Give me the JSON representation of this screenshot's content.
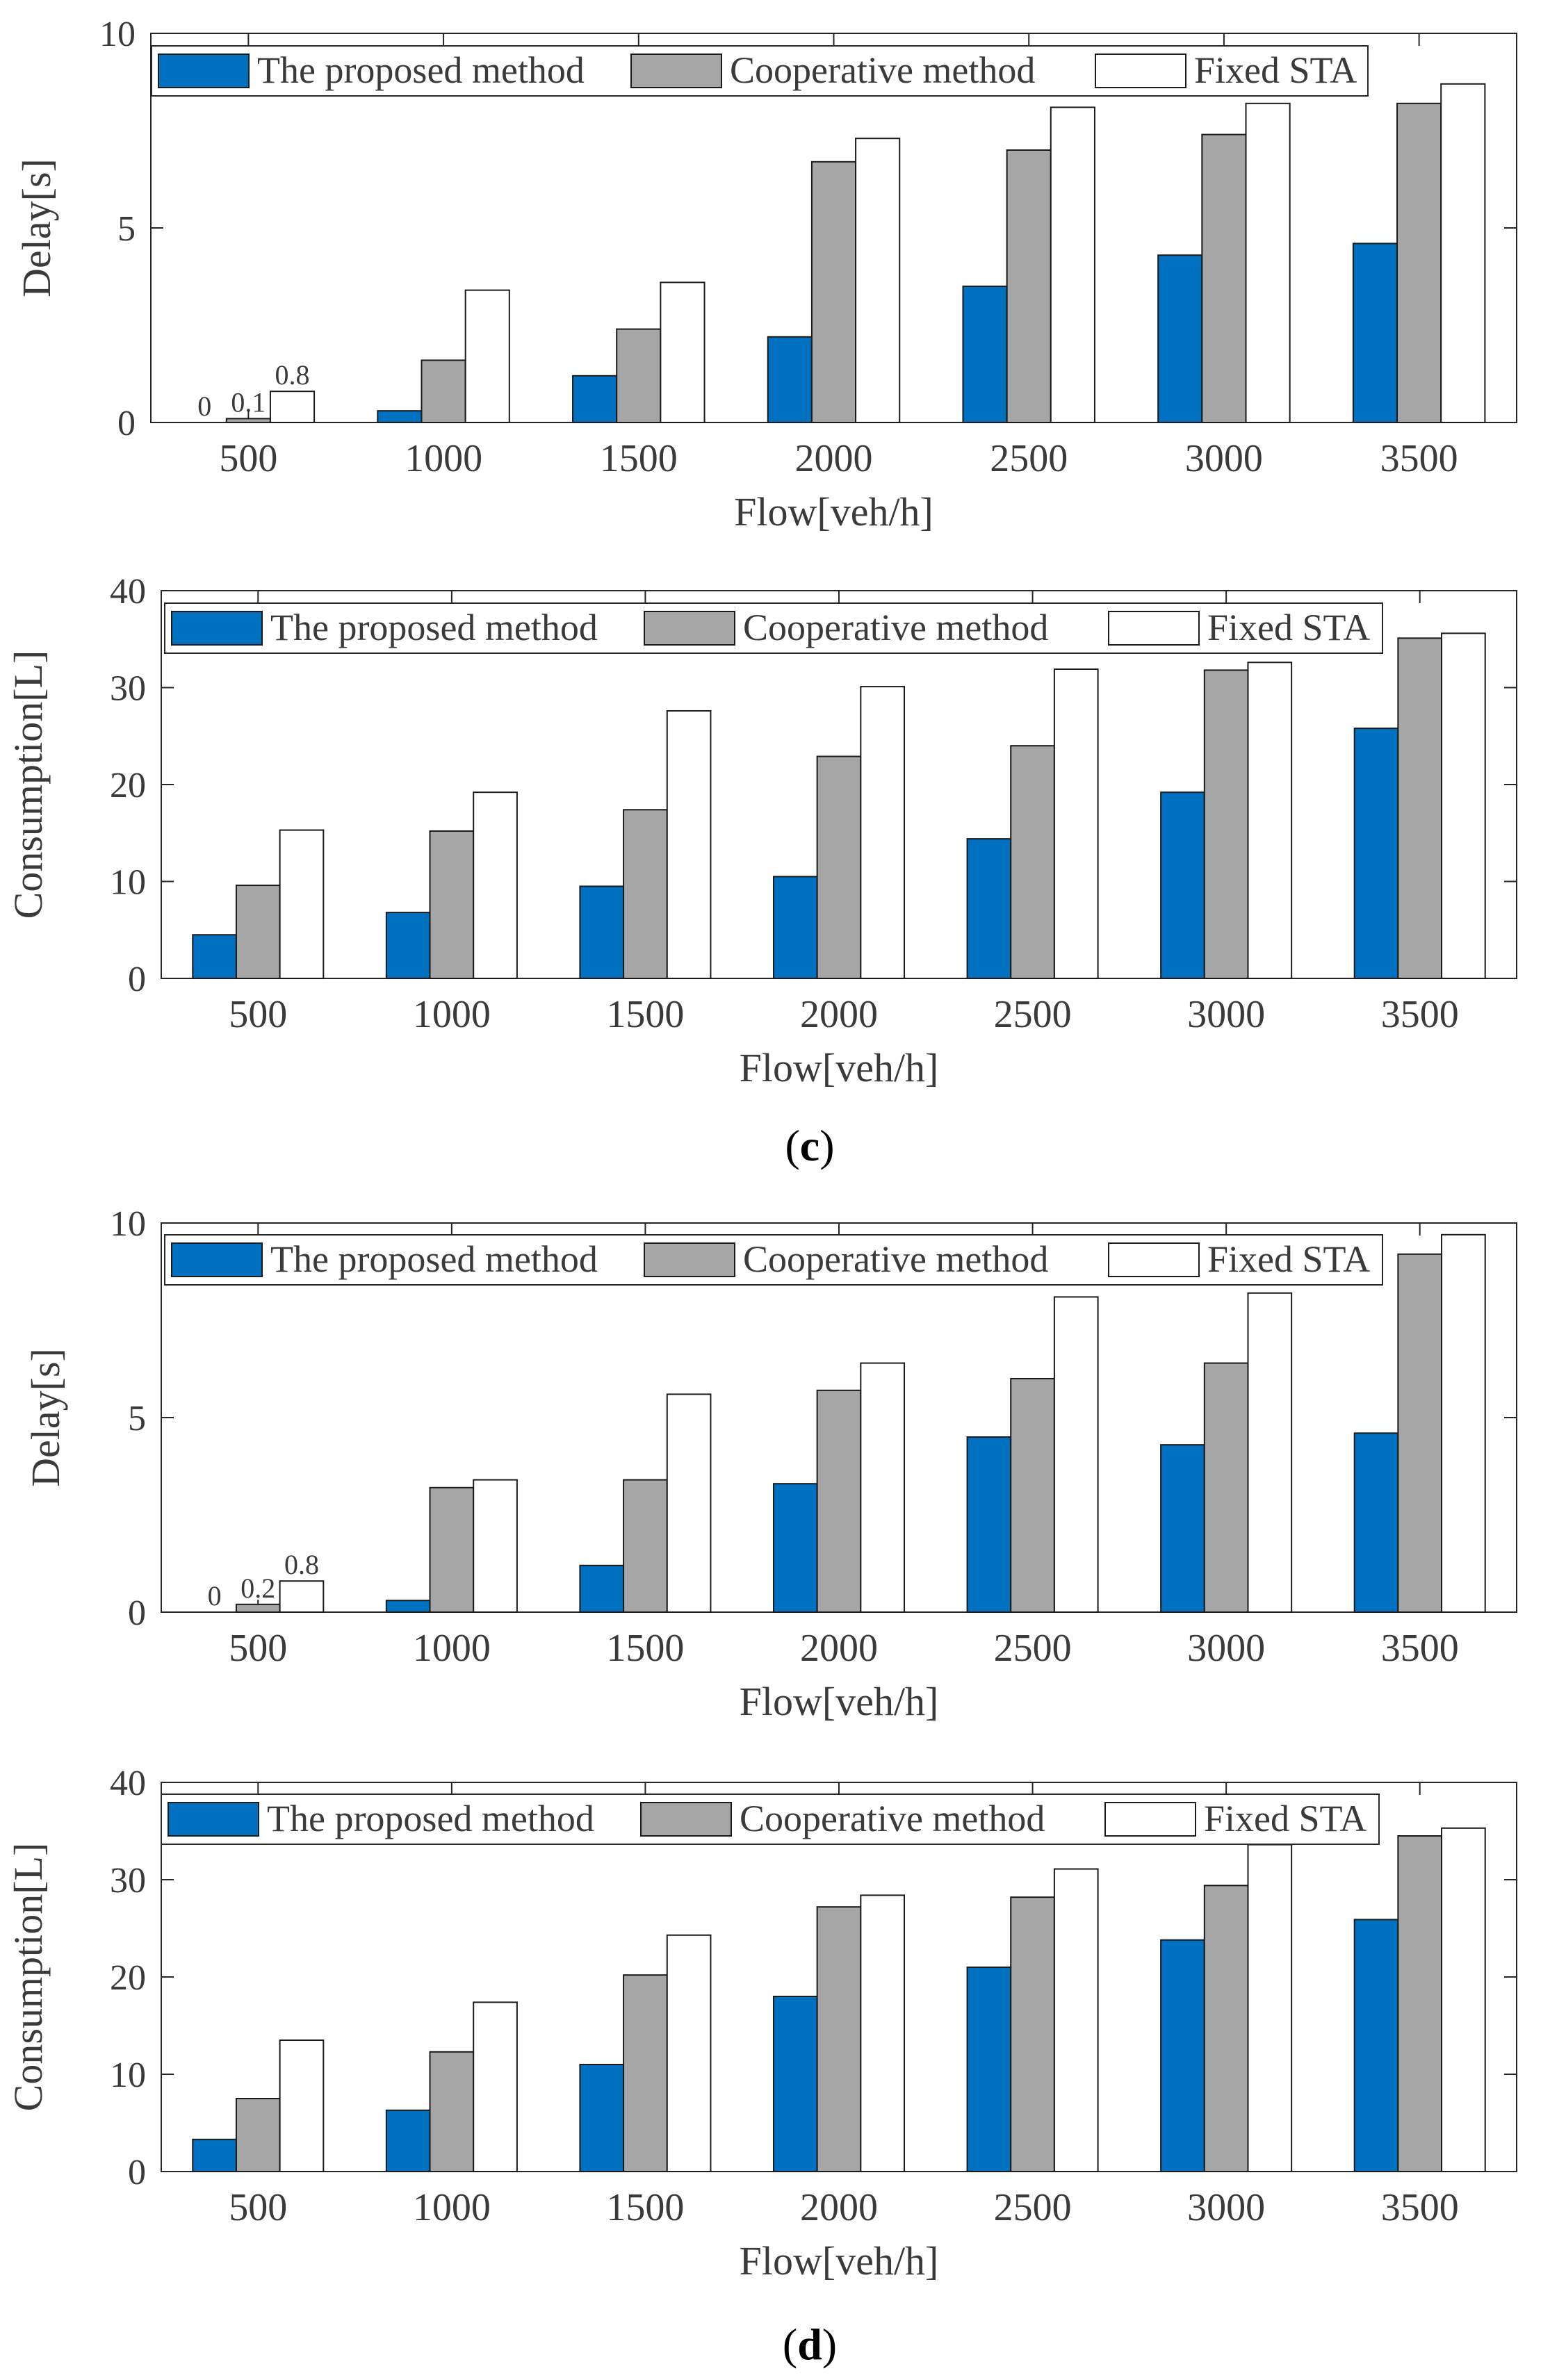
{
  "figure": {
    "colors": {
      "proposed": "#0070c0",
      "cooperative": "#a6a6a6",
      "fixed": "#ffffff",
      "edge": "#1a1a1a",
      "axis": "#262626"
    }
  },
  "panel_labels": {
    "c": {
      "open": "(",
      "letter": "c",
      "close": ")"
    },
    "d": {
      "open": "(",
      "letter": "d",
      "close": ")"
    }
  },
  "chart_data": [
    {
      "id": "c-delay",
      "type": "bar",
      "xlabel": "Flow[veh/h]",
      "ylabel": "Delay[s]",
      "ylim": [
        0,
        10
      ],
      "yticks": [
        0,
        5,
        10
      ],
      "categories": [
        "500",
        "1000",
        "1500",
        "2000",
        "2500",
        "3000",
        "3500"
      ],
      "legend": {
        "placement": "top-left",
        "entries": [
          "The proposed method",
          "Cooperative method",
          "Fixed STA"
        ]
      },
      "series": [
        {
          "name": "The proposed method",
          "values": [
            0,
            0.3,
            1.2,
            2.2,
            3.5,
            4.3,
            4.6
          ]
        },
        {
          "name": "Cooperative method",
          "values": [
            0.1,
            1.6,
            2.4,
            6.7,
            7.0,
            7.4,
            8.2
          ]
        },
        {
          "name": "Fixed STA",
          "values": [
            0.8,
            3.4,
            3.6,
            7.3,
            8.1,
            8.2,
            8.7
          ]
        }
      ],
      "annotations": [
        {
          "category": "500",
          "series": 0,
          "text": "0"
        },
        {
          "category": "500",
          "series": 1,
          "text": "0.1"
        },
        {
          "category": "500",
          "series": 2,
          "text": "0.8"
        }
      ]
    },
    {
      "id": "c-consumption",
      "type": "bar",
      "xlabel": "Flow[veh/h]",
      "ylabel": "Consumption[L]",
      "ylim": [
        0,
        40
      ],
      "yticks": [
        0,
        10,
        20,
        30,
        40
      ],
      "categories": [
        "500",
        "1000",
        "1500",
        "2000",
        "2500",
        "3000",
        "3500"
      ],
      "legend": {
        "placement": "top",
        "entries": [
          "The proposed method",
          "Cooperative method",
          "Fixed STA"
        ]
      },
      "series": [
        {
          "name": "The proposed method",
          "values": [
            4.5,
            6.8,
            9.5,
            10.5,
            14.4,
            19.2,
            25.8
          ]
        },
        {
          "name": "Cooperative method",
          "values": [
            9.6,
            15.2,
            17.4,
            22.9,
            24.0,
            31.8,
            35.1
          ]
        },
        {
          "name": "Fixed STA",
          "values": [
            15.3,
            19.2,
            27.6,
            30.1,
            31.9,
            32.6,
            35.6
          ]
        }
      ],
      "annotations": []
    },
    {
      "id": "d-delay",
      "type": "bar",
      "xlabel": "Flow[veh/h]",
      "ylabel": "Delay[s]",
      "ylim": [
        0,
        10
      ],
      "yticks": [
        0,
        5,
        10
      ],
      "categories": [
        "500",
        "1000",
        "1500",
        "2000",
        "2500",
        "3000",
        "3500"
      ],
      "legend": {
        "placement": "top",
        "entries": [
          "The proposed method",
          "Cooperative method",
          "Fixed STA"
        ]
      },
      "series": [
        {
          "name": "The proposed method",
          "values": [
            0,
            0.3,
            1.2,
            3.3,
            4.5,
            4.3,
            4.6
          ]
        },
        {
          "name": "Cooperative method",
          "values": [
            0.2,
            3.2,
            3.4,
            5.7,
            6.0,
            6.4,
            9.2
          ]
        },
        {
          "name": "Fixed STA",
          "values": [
            0.8,
            3.4,
            5.6,
            6.4,
            8.1,
            8.2,
            9.7
          ]
        }
      ],
      "annotations": [
        {
          "category": "500",
          "series": 0,
          "text": "0"
        },
        {
          "category": "500",
          "series": 1,
          "text": "0.2"
        },
        {
          "category": "500",
          "series": 2,
          "text": "0.8"
        }
      ]
    },
    {
      "id": "d-consumption",
      "type": "bar",
      "xlabel": "Flow[veh/h]",
      "ylabel": "Consumption[L]",
      "ylim": [
        0,
        40
      ],
      "yticks": [
        0,
        10,
        20,
        30,
        40
      ],
      "categories": [
        "500",
        "1000",
        "1500",
        "2000",
        "2500",
        "3000",
        "3500"
      ],
      "legend": {
        "placement": "top",
        "entries": [
          "The proposed method",
          "Cooperative method",
          "Fixed STA"
        ]
      },
      "series": [
        {
          "name": "The proposed method",
          "values": [
            3.3,
            6.3,
            11.0,
            18.0,
            21.0,
            23.8,
            25.9
          ]
        },
        {
          "name": "Cooperative method",
          "values": [
            7.5,
            12.3,
            20.2,
            27.2,
            28.2,
            29.4,
            34.5
          ]
        },
        {
          "name": "Fixed STA",
          "values": [
            13.5,
            17.4,
            24.3,
            28.4,
            31.1,
            33.6,
            35.3
          ]
        }
      ],
      "annotations": []
    }
  ]
}
